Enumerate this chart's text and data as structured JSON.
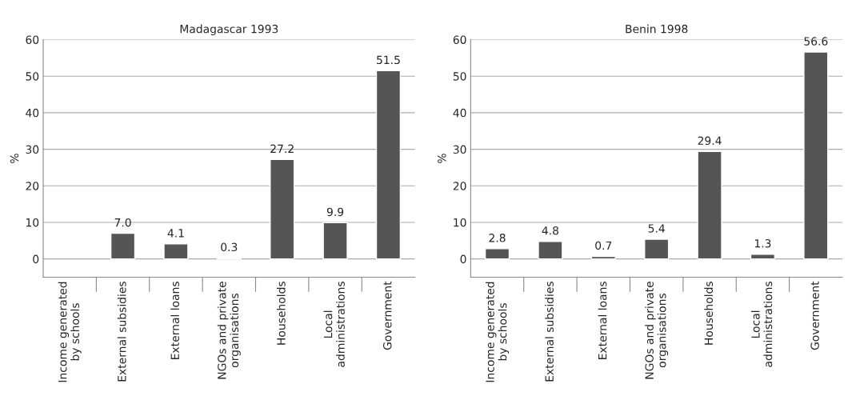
{
  "chart_data": [
    {
      "type": "bar",
      "title": "Madagascar 1993",
      "ylabel": "%",
      "categories": [
        "Income generated\nby schools",
        "External subsidies",
        "External loans",
        "NGOs and private\norganisations",
        "Households",
        "Local\nadministrations",
        "Government"
      ],
      "values": [
        null,
        7.0,
        4.1,
        0.3,
        27.2,
        9.9,
        51.5
      ],
      "value_labels": [
        null,
        "7.0",
        "4.1",
        "0.3",
        "27.2",
        "9.9",
        "51.5"
      ],
      "color": "#555555",
      "ylim": [
        -5,
        60
      ],
      "yticks": [
        0,
        10,
        20,
        30,
        40,
        50,
        60
      ],
      "grid": "y",
      "legend": false
    },
    {
      "type": "bar",
      "title": "Benin 1998",
      "ylabel": "%",
      "categories": [
        "Income generated\nby schools",
        "External subsidies",
        "External loans",
        "NGOs and private\norganisations",
        "Households",
        "Local\nadministrations",
        "Government"
      ],
      "values": [
        2.8,
        4.8,
        0.7,
        5.4,
        29.4,
        1.3,
        56.6
      ],
      "value_labels": [
        "2.8",
        "4.8",
        "0.7",
        "5.4",
        "29.4",
        "1.3",
        "56.6"
      ],
      "color": "#555555",
      "ylim": [
        -5,
        60
      ],
      "yticks": [
        0,
        10,
        20,
        30,
        40,
        50,
        60
      ],
      "grid": "y",
      "legend": false
    }
  ]
}
